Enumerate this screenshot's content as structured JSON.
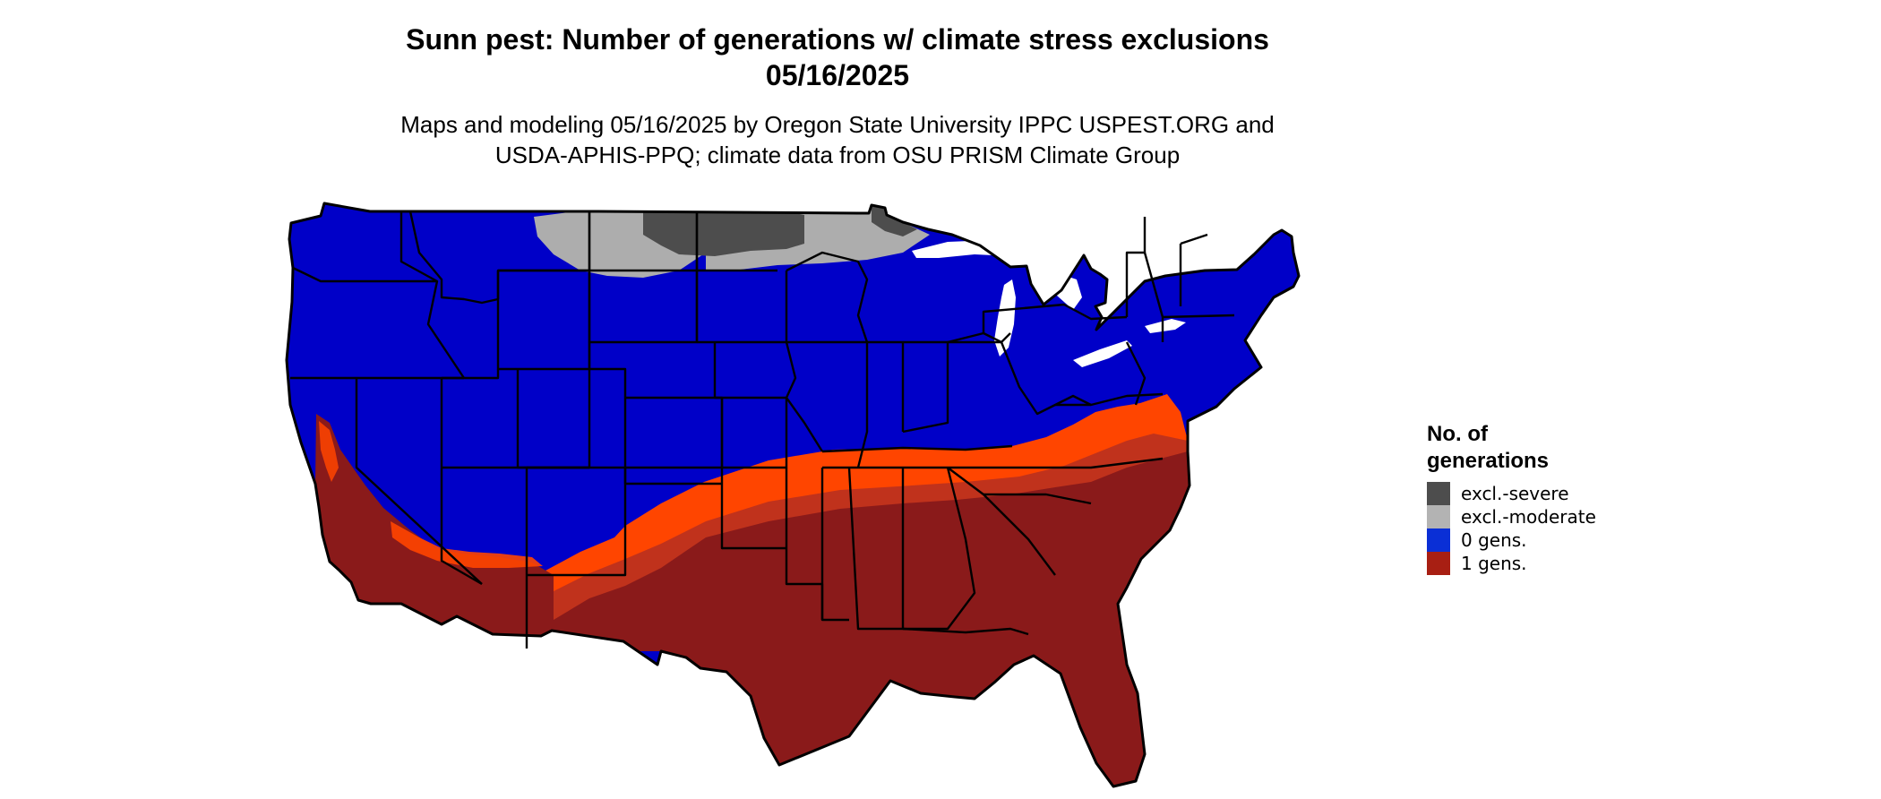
{
  "title": {
    "line1": "Sunn pest: Number of generations w/ climate stress exclusions",
    "line2": "05/16/2025"
  },
  "subtitle": {
    "line1": "Maps and modeling 05/16/2025 by Oregon State University IPPC USPEST.ORG and",
    "line2": "USDA-APHIS-PPQ; climate data from OSU PRISM Climate Group"
  },
  "legend": {
    "title_line1": "No. of",
    "title_line2": "generations",
    "items": [
      {
        "label": "excl.-severe",
        "color": "#4d4d4d"
      },
      {
        "label": "excl.-moderate",
        "color": "#b3b3b3"
      },
      {
        "label": "0 gens.",
        "color": "#0a2fd6"
      },
      {
        "label": "1 gens.",
        "color": "#a81f13"
      }
    ]
  },
  "map_colors": {
    "zero_gens_fill": "#0000c8",
    "one_gen_dark": "#8a1a1a",
    "one_gen_mid": "#c0321c",
    "one_gen_light": "#ff4500",
    "severe": "#4d4d4d",
    "moderate": "#adadad",
    "borders": "#000000"
  }
}
